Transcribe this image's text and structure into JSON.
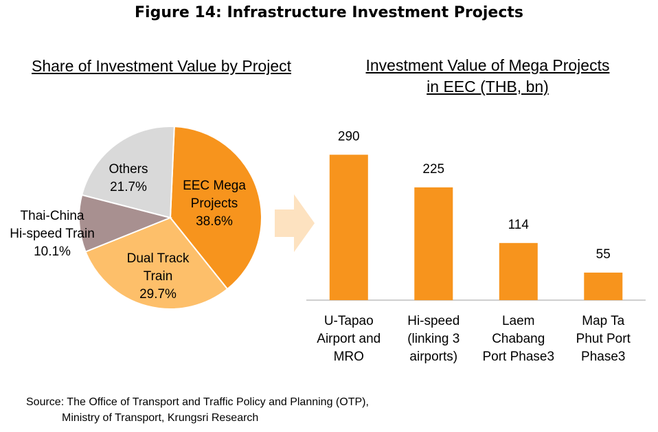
{
  "figure_title": "Figure 14:  Infrastructure Investment Projects",
  "source": {
    "line1": "Source: The Office of Transport and Traffic  Policy and Planning (OTP),",
    "line2": "Ministry of Transport, Krungsri Research"
  },
  "colors": {
    "eec_mega": "#f7941d",
    "dual_track": "#fdbf6a",
    "thai_china": "#a89090",
    "others": "#d9d9d9",
    "bar": "#f7941d",
    "arrow": "#fde2c0"
  },
  "chart_data": [
    {
      "type": "pie",
      "title": "Share of Investment Value by Project",
      "slices": [
        {
          "label_lines": [
            "EEC Mega",
            "Projects",
            "38.6%"
          ],
          "name": "EEC Mega Projects",
          "value": 38.6,
          "color": "#f7941d"
        },
        {
          "label_lines": [
            "Dual Track",
            "Train",
            "29.7%"
          ],
          "name": "Dual Track Train",
          "value": 29.7,
          "color": "#fdbf6a"
        },
        {
          "label_lines": [
            "Thai-China",
            "Hi-speed Train",
            "10.1%"
          ],
          "name": "Thai-China Hi-speed Train",
          "value": 10.1,
          "color": "#a89090"
        },
        {
          "label_lines": [
            "Others",
            "21.7%"
          ],
          "name": "Others",
          "value": 21.7,
          "color": "#d9d9d9"
        }
      ]
    },
    {
      "type": "bar",
      "title_lines": [
        "Investment Value of Mega Projects",
        "in EEC (THB, bn)"
      ],
      "categories": [
        [
          "U-Tapao",
          "Airport and",
          "MRO"
        ],
        [
          "Hi-speed",
          "(linking 3",
          "airports)"
        ],
        [
          "Laem",
          "Chabang",
          "Port Phase3"
        ],
        [
          "Map Ta",
          "Phut Port",
          "Phase3"
        ]
      ],
      "values": [
        290,
        225,
        114,
        55
      ],
      "color": "#f7941d",
      "ylim": [
        0,
        300
      ]
    }
  ]
}
